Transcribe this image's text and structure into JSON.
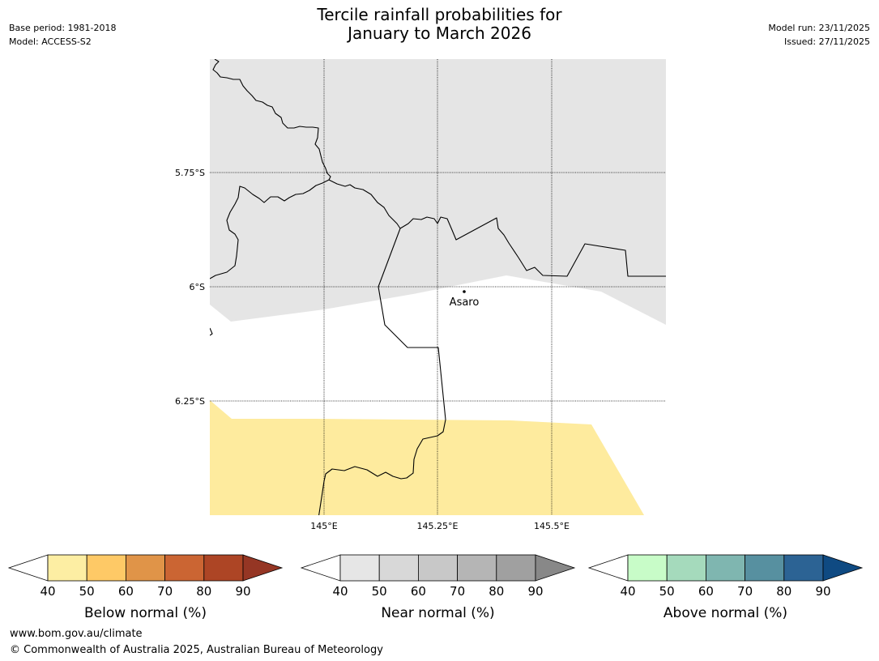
{
  "header": {
    "base_period": "Base period: 1981-2018",
    "model": "Model: ACCESS-S2",
    "title_line1": "Tercile rainfall probabilities for",
    "title_line2": "January to March 2026",
    "model_run": "Model run: 23/11/2025",
    "issued": "Issued: 27/11/2025"
  },
  "map": {
    "lat_labels": [
      "5.75°S",
      "6°S",
      "6.25°S"
    ],
    "lon_labels": [
      "145°E",
      "145.25°E",
      "145.5°E"
    ],
    "place_label": "Asaro",
    "colors": {
      "near_normal_fill": "#e5e5e5",
      "below_normal_fill": "#feeb9e",
      "border": "#000000"
    }
  },
  "colorbars": [
    {
      "label": "Below normal (%)",
      "ticks": [
        "40",
        "50",
        "60",
        "70",
        "80",
        "90"
      ],
      "colors": [
        "#ffffff",
        "#fdeea3",
        "#fec966",
        "#e09448",
        "#cb6533",
        "#ad4525",
        "#953624"
      ]
    },
    {
      "label": "Near normal (%)",
      "ticks": [
        "40",
        "50",
        "60",
        "70",
        "80",
        "90"
      ],
      "colors": [
        "#ffffff",
        "#e6e6e6",
        "#d8d8d8",
        "#c8c8c8",
        "#b5b5b5",
        "#a0a0a0",
        "#888888"
      ]
    },
    {
      "label": "Above normal (%)",
      "ticks": [
        "40",
        "50",
        "60",
        "70",
        "80",
        "90"
      ],
      "colors": [
        "#ffffff",
        "#c8fcc8",
        "#a5dabc",
        "#7fb6b0",
        "#5790a0",
        "#2c6394",
        "#0f4a82"
      ]
    }
  ],
  "footer": {
    "url": "www.bom.gov.au/climate",
    "copyright": "© Commonwealth of Australia 2025, Australian Bureau of Meteorology"
  }
}
